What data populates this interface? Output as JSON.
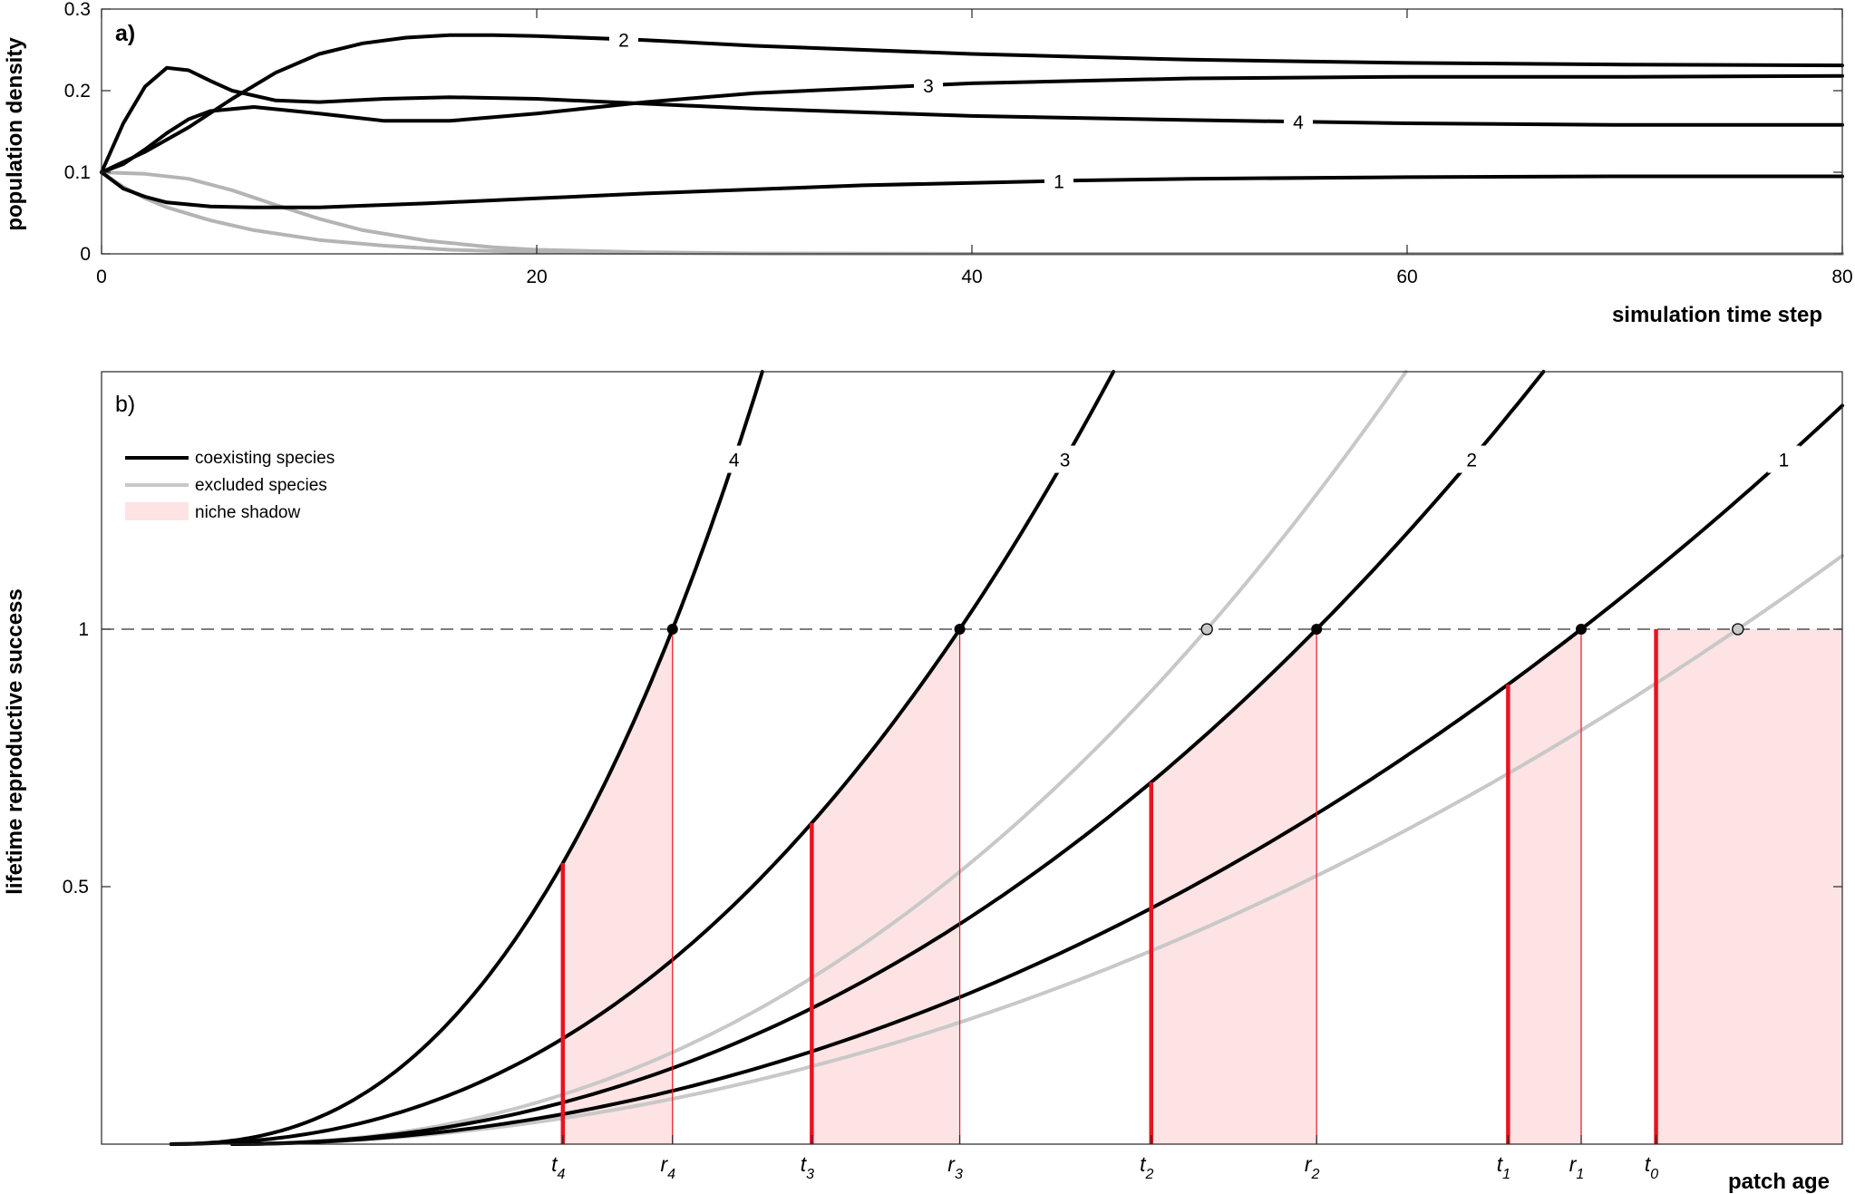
{
  "chart_data": [
    {
      "panel": "a)",
      "type": "line",
      "xlabel": "simulation time step",
      "ylabel": "population density",
      "xlim": [
        0,
        80
      ],
      "ylim": [
        0,
        0.3
      ],
      "xticks": [
        0,
        20,
        40,
        60,
        80
      ],
      "yticks": [
        0,
        0.1,
        0.2,
        0.3
      ],
      "grid": false,
      "colors": {
        "coexisting": "#000000",
        "excluded": "#b4b4b4"
      },
      "series": [
        {
          "label": "1",
          "group": "coexisting",
          "label_x": 44,
          "x": [
            0,
            1,
            2,
            3,
            5,
            7,
            10,
            15,
            20,
            25,
            30,
            35,
            40,
            45,
            50,
            60,
            70,
            80
          ],
          "y": [
            0.1,
            0.08,
            0.07,
            0.063,
            0.058,
            0.057,
            0.057,
            0.062,
            0.068,
            0.074,
            0.079,
            0.084,
            0.087,
            0.09,
            0.092,
            0.094,
            0.095,
            0.095
          ]
        },
        {
          "label": "2",
          "group": "coexisting",
          "label_x": 24,
          "x": [
            0,
            2,
            4,
            6,
            8,
            10,
            12,
            14,
            16,
            18,
            20,
            25,
            30,
            40,
            50,
            60,
            70,
            80
          ],
          "y": [
            0.1,
            0.125,
            0.155,
            0.19,
            0.222,
            0.245,
            0.258,
            0.265,
            0.268,
            0.268,
            0.267,
            0.262,
            0.255,
            0.245,
            0.238,
            0.234,
            0.232,
            0.231
          ]
        },
        {
          "label": "3",
          "group": "coexisting",
          "label_x": 38,
          "x": [
            0,
            1,
            2,
            3,
            4,
            5,
            7,
            10,
            13,
            16,
            20,
            25,
            30,
            40,
            50,
            60,
            70,
            80
          ],
          "y": [
            0.1,
            0.11,
            0.128,
            0.148,
            0.165,
            0.175,
            0.18,
            0.172,
            0.163,
            0.163,
            0.172,
            0.186,
            0.197,
            0.209,
            0.215,
            0.217,
            0.217,
            0.218
          ]
        },
        {
          "label": "4",
          "group": "coexisting",
          "label_x": 55,
          "x": [
            0,
            1,
            2,
            3,
            4,
            5,
            6,
            8,
            10,
            13,
            16,
            20,
            25,
            30,
            40,
            50,
            60,
            70,
            80
          ],
          "y": [
            0.1,
            0.16,
            0.205,
            0.228,
            0.225,
            0.212,
            0.2,
            0.188,
            0.186,
            0.19,
            0.192,
            0.19,
            0.184,
            0.178,
            0.169,
            0.164,
            0.16,
            0.158,
            0.158
          ]
        },
        {
          "label": "",
          "group": "excluded",
          "x": [
            0,
            2,
            4,
            6,
            8,
            10,
            12,
            15,
            18,
            20,
            25,
            30,
            40,
            60,
            80
          ],
          "y": [
            0.1,
            0.098,
            0.092,
            0.078,
            0.06,
            0.043,
            0.029,
            0.016,
            0.008,
            0.005,
            0.002,
            0.0005,
            0,
            0,
            0
          ]
        },
        {
          "label": "",
          "group": "excluded",
          "x": [
            0,
            1,
            2,
            3,
            5,
            7,
            10,
            13,
            16,
            20,
            25,
            30,
            40,
            60,
            80
          ],
          "y": [
            0.1,
            0.082,
            0.068,
            0.057,
            0.041,
            0.029,
            0.017,
            0.01,
            0.005,
            0.002,
            0.001,
            0.0003,
            0,
            0,
            0
          ]
        }
      ]
    },
    {
      "panel": "b)",
      "type": "line",
      "xlabel": "patch age",
      "ylabel": "lifetime reproductive success",
      "xlim": [
        0,
        1
      ],
      "ylim": [
        0,
        1.5
      ],
      "yticks": [
        0.5,
        1
      ],
      "reference_line": {
        "y": 1,
        "style": "dashed"
      },
      "grid": false,
      "legend": {
        "position": "top-left",
        "entries": [
          {
            "label": "coexisting species",
            "type": "line",
            "color": "#000000"
          },
          {
            "label": "excluded species",
            "type": "line",
            "color": "#c8c8c8"
          },
          {
            "label": "niche shadow",
            "type": "patch",
            "color": "#fde3e4"
          }
        ]
      },
      "colors": {
        "coexisting": "#000000",
        "excluded": "#c8c8c8",
        "shade": "#fde3e4",
        "marker_line": "#e8141e"
      },
      "curves": [
        {
          "label": "4",
          "group": "coexisting",
          "x0": 0.035,
          "r": 0.328,
          "p": 2.5,
          "label_y": 1.33
        },
        {
          "label": "3",
          "group": "coexisting",
          "x0": 0.035,
          "r": 0.493,
          "p": 2.3,
          "label_y": 1.33
        },
        {
          "label": "2",
          "group": "coexisting",
          "x0": 0.07,
          "r": 0.698,
          "p": 2.15,
          "label_y": 1.33
        },
        {
          "label": "1",
          "group": "coexisting",
          "x0": 0.07,
          "r": 0.85,
          "p": 2.05,
          "label_y": 1.33
        },
        {
          "label": "",
          "group": "excluded",
          "x0": 0.07,
          "r": 0.635,
          "p": 2.2
        },
        {
          "label": "",
          "group": "excluded",
          "x0": 0.07,
          "r": 0.94,
          "p": 2.0
        }
      ],
      "open_circles": [
        0.635,
        0.94
      ],
      "markers": [
        {
          "t": "t",
          "t_sub": "4",
          "t_x": 0.265,
          "r": "r",
          "r_sub": "4",
          "r_x": 0.328,
          "curve": "4"
        },
        {
          "t": "t",
          "t_sub": "3",
          "t_x": 0.408,
          "r": "r",
          "r_sub": "3",
          "r_x": 0.493,
          "curve": "3"
        },
        {
          "t": "t",
          "t_sub": "2",
          "t_x": 0.603,
          "r": "r",
          "r_sub": "2",
          "r_x": 0.698,
          "curve": "2"
        },
        {
          "t": "t",
          "t_sub": "1",
          "t_x": 0.808,
          "r": "r",
          "r_sub": "1",
          "r_x": 0.85,
          "curve": "1"
        },
        {
          "t": "t",
          "t_sub": "0",
          "t_x": 0.893,
          "r": "",
          "r_sub": "",
          "r_x": 1.0,
          "curve": "flat"
        }
      ]
    }
  ]
}
